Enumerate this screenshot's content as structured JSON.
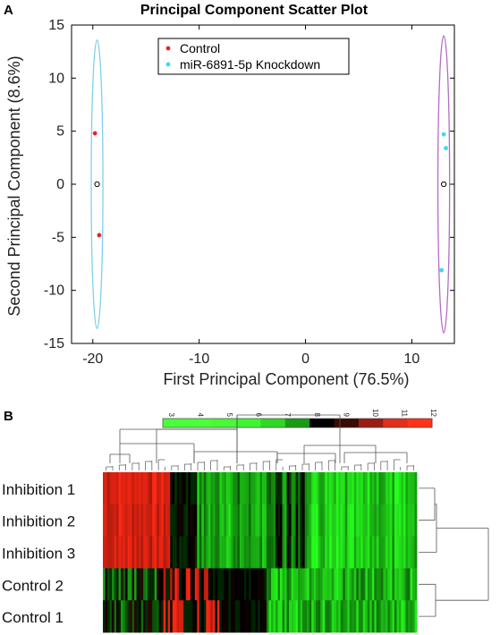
{
  "panel_a": {
    "panel_label": "A",
    "chart_data": {
      "type": "scatter",
      "title": "Principal Component Scatter Plot",
      "xlabel": "First Principal Component (76.5%)",
      "ylabel": "Second Principal Component (8.6%)",
      "xlim": [
        -22,
        14
      ],
      "ylim": [
        -15,
        15
      ],
      "xticks": [
        -20,
        -10,
        0,
        10
      ],
      "yticks": [
        -15,
        -10,
        -5,
        0,
        5,
        10,
        15
      ],
      "legend_position": "top-center",
      "series": [
        {
          "name": "Control",
          "color": "#e8231e",
          "points": [
            [
              -19.8,
              4.8
            ],
            [
              -19.4,
              -4.8
            ]
          ]
        },
        {
          "name": "miR-6891-5p Knockdown",
          "color": "#3ad9f0",
          "points": [
            [
              13.0,
              4.7
            ],
            [
              13.2,
              3.4
            ],
            [
              12.8,
              -8.1
            ]
          ]
        }
      ],
      "centroids": [
        [
          -19.6,
          0
        ],
        [
          13.0,
          0
        ]
      ],
      "ellipses": [
        {
          "group": "Control",
          "color": "#7fd0ea",
          "cx": -19.6,
          "cy": 0,
          "rx": 0.55,
          "ry": 13.6
        },
        {
          "group": "miR-6891-5p Knockdown",
          "color": "#b46cc6",
          "cx": 13.0,
          "cy": 0,
          "rx": 0.55,
          "ry": 14.0
        }
      ]
    }
  },
  "panel_b": {
    "panel_label": "B",
    "chart_data": {
      "type": "heatmap",
      "rows": [
        "Inhibition 1",
        "Inhibition 2",
        "Inhibition 3",
        "Control 2",
        "Control 1"
      ],
      "colorbar": {
        "ticks": [
          "3",
          "4",
          "5",
          "6",
          "7",
          "8",
          "9",
          "10",
          "11",
          "12"
        ],
        "low_color": "#00ff00",
        "mid_color": "#000000",
        "high_color": "#ff2a00"
      }
    }
  }
}
